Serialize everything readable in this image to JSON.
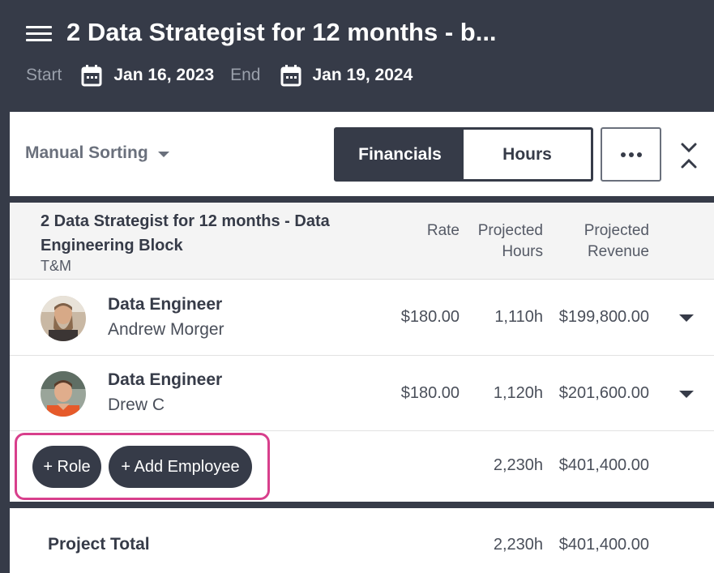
{
  "header": {
    "title": "2 Data Strategist for 12 months - b...",
    "start_label": "Start",
    "start_date": "Jan 16, 2023",
    "end_label": "End",
    "end_date": "Jan 19, 2024",
    "icons": [
      "menu-icon",
      "calendar-icon"
    ]
  },
  "toolbar": {
    "sorting_label": "Manual Sorting",
    "tabs": [
      {
        "label": "Financials",
        "active": true
      },
      {
        "label": "Hours",
        "active": false
      }
    ],
    "more_icon": "more-horizontal-icon",
    "collapse_icon": "collapse-icon"
  },
  "table": {
    "block_title": "2 Data Strategist for 12 months - Data Engineering Block",
    "block_type": "T&M",
    "columns": {
      "rate": "Rate",
      "hours_line1": "Projected",
      "hours_line2": "Hours",
      "revenue_line1": "Projected",
      "revenue_line2": "Revenue"
    },
    "rows": [
      {
        "role": "Data Engineer",
        "employee": "Andrew Morger",
        "rate": "$180.00",
        "hours": "1,110h",
        "revenue": "$199,800.00"
      },
      {
        "role": "Data Engineer",
        "employee": "Drew C",
        "rate": "$180.00",
        "hours": "1,120h",
        "revenue": "$201,600.00"
      }
    ],
    "add_role_label": "+ Role",
    "add_employee_label": "+ Add Employee",
    "subtotal_hours": "2,230h",
    "subtotal_revenue": "$401,400.00"
  },
  "total": {
    "label": "Project Total",
    "hours": "2,230h",
    "revenue": "$401,400.00"
  },
  "colors": {
    "header_bg": "#363b48",
    "highlight": "#d83f8c"
  }
}
